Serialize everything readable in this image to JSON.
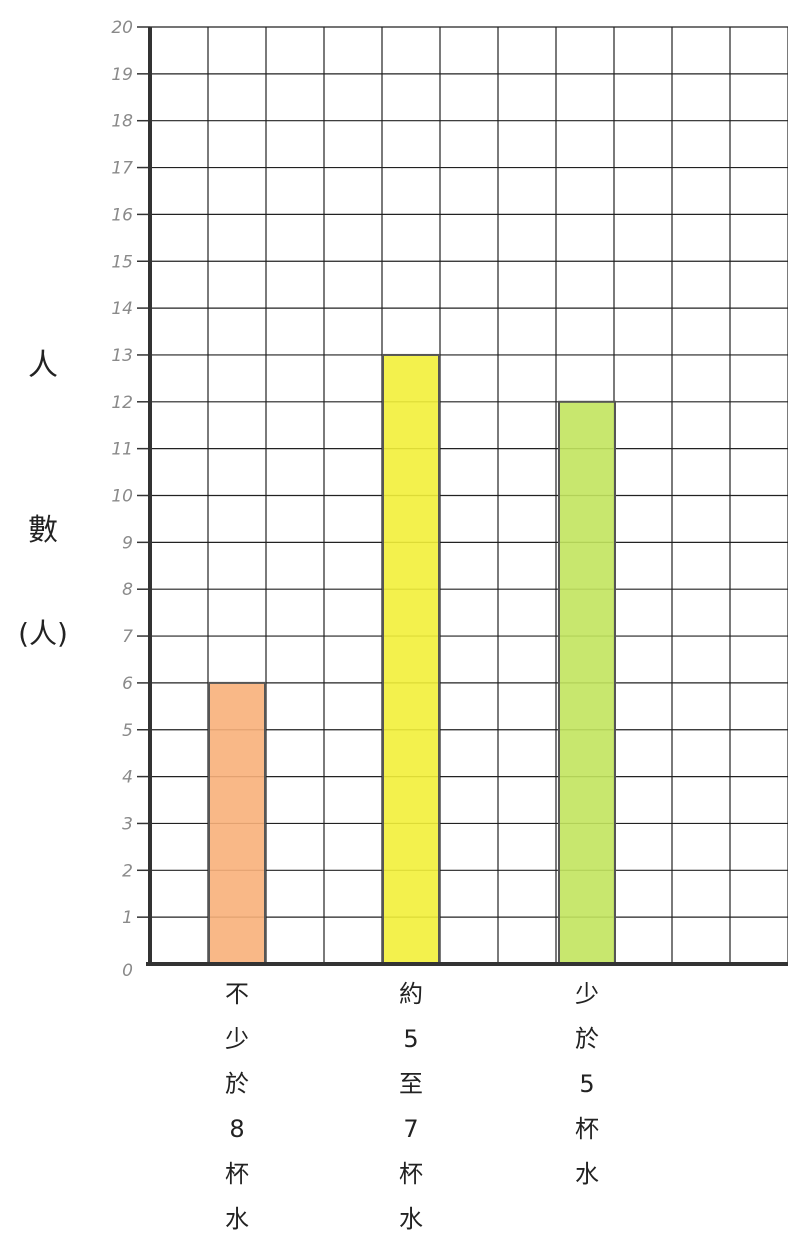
{
  "chart_data": {
    "type": "bar",
    "title": "",
    "xlabel": "",
    "ylabel_chars": [
      "人",
      "數",
      "(人)"
    ],
    "ylim": [
      0,
      20
    ],
    "yticks": [
      "0",
      "1",
      "2",
      "3",
      "4",
      "5",
      "6",
      "7",
      "8",
      "9",
      "10",
      "11",
      "12",
      "13",
      "14",
      "15",
      "16",
      "17",
      "18",
      "19",
      "20"
    ],
    "grid": true,
    "categories": [
      {
        "chars": [
          "不",
          "少",
          "於",
          "8",
          "杯",
          "水"
        ]
      },
      {
        "chars": [
          "約",
          "5",
          "至",
          "7",
          "杯",
          "水"
        ]
      },
      {
        "chars": [
          "少",
          "於",
          "5",
          "杯",
          "水"
        ]
      }
    ],
    "values": [
      6,
      13,
      12
    ],
    "colors": [
      "#f8b07a",
      "#f2ef3a",
      "#c2e45e"
    ]
  }
}
